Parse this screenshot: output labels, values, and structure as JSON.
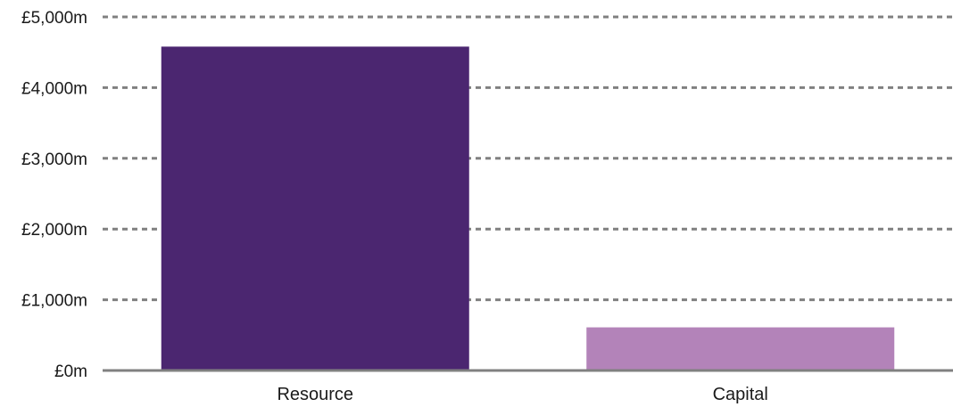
{
  "chart_data": {
    "type": "bar",
    "title": "",
    "xlabel": "",
    "ylabel": "",
    "categories": [
      "Resource",
      "Capital"
    ],
    "values": [
      4580,
      610
    ],
    "unit": "£m",
    "ylim": [
      0,
      5000
    ],
    "yticks": [
      0,
      1000,
      2000,
      3000,
      4000,
      5000
    ],
    "ytick_labels": [
      "£0m",
      "£1,000m",
      "£2,000m",
      "£3,000m",
      "£4,000m",
      "£5,000m"
    ],
    "bar_colors": [
      "#4b2670",
      "#b383b9"
    ],
    "grid": "horizontal dashed",
    "grid_color": "#808080",
    "baseline_color": "#808080",
    "legend": "none"
  }
}
